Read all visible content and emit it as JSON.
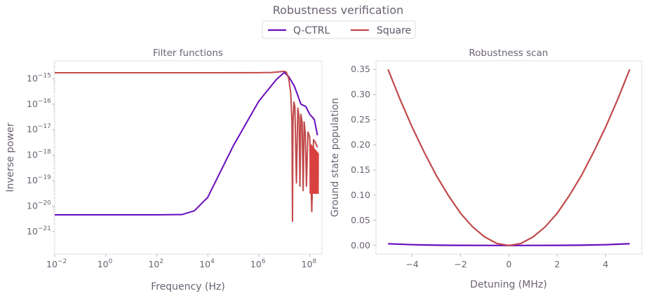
{
  "figure": {
    "title": "Robustness verification"
  },
  "legend": {
    "placement": "top-center",
    "entries": [
      {
        "name": "Q-CTRL",
        "color": "#680cbe"
      },
      {
        "name": "Square",
        "color": "#c1494a"
      }
    ]
  },
  "colors": {
    "axis": "#e1e1e1",
    "text": "#6b6272",
    "q_ctrl": "#680cbe",
    "square": "#c1494a",
    "square_tail": "#d94040"
  },
  "chart_data": [
    {
      "type": "line",
      "title": "Filter functions",
      "xlabel": "Frequency (Hz)",
      "ylabel": "Inverse power",
      "xscale": "log",
      "yscale": "log",
      "xlim": [
        0.01,
        300000000
      ],
      "ylim": [
        1.3e-22,
        5e-15
      ],
      "xticks": [
        {
          "value": 0.01,
          "base": "10",
          "exp": "−2"
        },
        {
          "value": 1,
          "base": "10",
          "exp": "0"
        },
        {
          "value": 100,
          "base": "10",
          "exp": "2"
        },
        {
          "value": 10000,
          "base": "10",
          "exp": "4"
        },
        {
          "value": 1000000,
          "base": "10",
          "exp": "6"
        },
        {
          "value": 100000000,
          "base": "10",
          "exp": "8"
        }
      ],
      "yticks": [
        {
          "value": 1e-21,
          "base": "10",
          "exp": "−21"
        },
        {
          "value": 1e-20,
          "base": "10",
          "exp": "−20"
        },
        {
          "value": 1e-19,
          "base": "10",
          "exp": "−19"
        },
        {
          "value": 1e-18,
          "base": "10",
          "exp": "−18"
        },
        {
          "value": 1e-17,
          "base": "10",
          "exp": "−17"
        },
        {
          "value": 1e-16,
          "base": "10",
          "exp": "−16"
        },
        {
          "value": 1e-15,
          "base": "10",
          "exp": "−15"
        }
      ],
      "grid": false,
      "series": [
        {
          "name": "Q-CTRL",
          "color": "#680cbe",
          "x": [
            0.01,
            1,
            100,
            1000,
            3000,
            10000,
            100000,
            1000000,
            5000000,
            10000000,
            15000000,
            25000000,
            35000000,
            45000000,
            70000000,
            100000000,
            150000000,
            200000000
          ],
          "y": [
            4.5e-21,
            4.5e-21,
            4.5e-21,
            4.6e-21,
            6.5e-21,
            2.2e-20,
            2.3e-18,
            1.3e-16,
            9.5e-16,
            1.75e-15,
            1.2e-15,
            5e-16,
            2e-16,
            1e-16,
            8e-17,
            4e-17,
            2.5e-17,
            6e-18
          ]
        },
        {
          "name": "Square",
          "color": "#c1494a",
          "x": [
            0.01,
            1,
            100,
            10000,
            1000000,
            3000000,
            6000000,
            10000000,
            12000000,
            15000000,
            18000000,
            20000000,
            21000000,
            22000000,
            24000000,
            26000000,
            30000000,
            34000000,
            38000000,
            41000000,
            45000000,
            50000000,
            55000000,
            60000000,
            67000000,
            74000000,
            85000000,
            100000000,
            120000000,
            140000000,
            170000000,
            200000000
          ],
          "y": [
            1.7e-15,
            1.7e-15,
            1.7e-15,
            1.7e-15,
            1.72e-15,
            1.75e-15,
            1.85e-15,
            1.95e-15,
            1.8e-15,
            1e-15,
            2.5e-16,
            2e-17,
            2.5e-21,
            2e-17,
            1.2e-16,
            8e-17,
            8e-20,
            7e-17,
            3e-17,
            6e-20,
            4e-17,
            2e-17,
            4e-20,
            2e-17,
            7e-18,
            6e-20,
            8e-18,
            5e-18,
            6e-21,
            4e-18,
            3e-18,
            2e-18
          ]
        }
      ]
    },
    {
      "type": "line",
      "title": "Robustness scan",
      "xlabel": "Detuning (MHz)",
      "ylabel": "Ground state population",
      "xlim": [
        -5.5,
        5.5
      ],
      "ylim": [
        -0.017,
        0.367
      ],
      "xticks": [
        -4,
        -2,
        0,
        2,
        4
      ],
      "xtick_labels": [
        "−4",
        "−2",
        "0",
        "2",
        "4"
      ],
      "yticks": [
        0,
        0.05,
        0.1,
        0.15,
        0.2,
        0.25,
        0.3,
        0.35
      ],
      "ytick_labels": [
        "0.00",
        "0.05",
        "0.10",
        "0.15",
        "0.20",
        "0.25",
        "0.30",
        "0.35"
      ],
      "grid": false,
      "series": [
        {
          "name": "Q-CTRL",
          "color": "#680cbe",
          "x": [
            -5,
            -4,
            -3,
            -2,
            -1,
            0,
            1,
            2,
            3,
            4,
            5
          ],
          "y": [
            0.0035,
            0.0015,
            0.0006,
            0.0002,
            0.0001,
            0.0,
            0.0001,
            0.0002,
            0.0006,
            0.0015,
            0.0035
          ]
        },
        {
          "name": "Square",
          "color": "#c1494a",
          "x": [
            -5,
            -4.5,
            -4,
            -3.5,
            -3,
            -2.5,
            -2,
            -1.5,
            -1,
            -0.5,
            0,
            0.5,
            1,
            1.5,
            2,
            2.5,
            3,
            3.5,
            4,
            4.5,
            5
          ],
          "y": [
            0.35,
            0.29,
            0.235,
            0.185,
            0.139,
            0.099,
            0.064,
            0.037,
            0.017,
            0.004,
            0.0,
            0.004,
            0.017,
            0.037,
            0.064,
            0.099,
            0.139,
            0.185,
            0.235,
            0.29,
            0.35
          ]
        }
      ]
    }
  ]
}
